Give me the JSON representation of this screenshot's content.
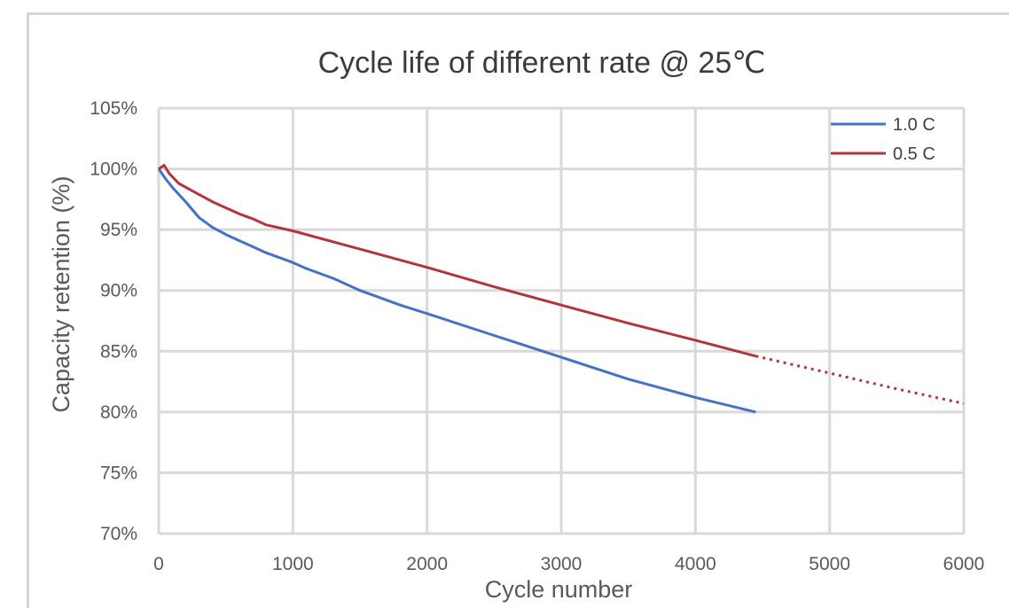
{
  "chart_data": {
    "type": "line",
    "title": "Cycle life of different rate @ 25℃",
    "xlabel": "Cycle number",
    "ylabel": "Capacity retention (%)",
    "xlim": [
      0,
      6000
    ],
    "ylim": [
      70,
      105
    ],
    "x_ticks": [
      "0",
      "1000",
      "2000",
      "3000",
      "4000",
      "5000",
      "6000"
    ],
    "y_ticks": [
      "70%",
      "75%",
      "80%",
      "85%",
      "90%",
      "95%",
      "100%",
      "105%"
    ],
    "grid": true,
    "legend_position": "top-right",
    "series": [
      {
        "name": "1.0 C",
        "color": "#4472c4",
        "points": [
          [
            0,
            100.0
          ],
          [
            50,
            99.2
          ],
          [
            100,
            98.5
          ],
          [
            200,
            97.3
          ],
          [
            300,
            96.0
          ],
          [
            400,
            95.2
          ],
          [
            500,
            94.6
          ],
          [
            600,
            94.1
          ],
          [
            700,
            93.6
          ],
          [
            800,
            93.1
          ],
          [
            900,
            92.7
          ],
          [
            1000,
            92.3
          ],
          [
            1100,
            91.8
          ],
          [
            1200,
            91.4
          ],
          [
            1300,
            91.0
          ],
          [
            1400,
            90.5
          ],
          [
            1500,
            90.0
          ],
          [
            1600,
            89.6
          ],
          [
            1700,
            89.2
          ],
          [
            1800,
            88.8
          ],
          [
            2000,
            88.1
          ],
          [
            2500,
            86.3
          ],
          [
            3000,
            84.5
          ],
          [
            3500,
            82.7
          ],
          [
            4000,
            81.2
          ],
          [
            4450,
            80.0
          ]
        ],
        "dashed_from_x": null
      },
      {
        "name": "0.5 C",
        "color": "#b5343c",
        "points": [
          [
            0,
            100.0
          ],
          [
            40,
            100.3
          ],
          [
            80,
            99.6
          ],
          [
            150,
            98.8
          ],
          [
            250,
            98.2
          ],
          [
            400,
            97.3
          ],
          [
            500,
            96.8
          ],
          [
            600,
            96.3
          ],
          [
            700,
            95.9
          ],
          [
            800,
            95.4
          ],
          [
            1000,
            94.9
          ],
          [
            1500,
            93.4
          ],
          [
            2000,
            91.9
          ],
          [
            2500,
            90.3
          ],
          [
            3000,
            88.8
          ],
          [
            3500,
            87.3
          ],
          [
            4000,
            85.9
          ],
          [
            4450,
            84.6
          ],
          [
            5000,
            83.2
          ],
          [
            5500,
            81.9
          ],
          [
            6000,
            80.7
          ]
        ],
        "dashed_from_x": 4450
      }
    ]
  }
}
